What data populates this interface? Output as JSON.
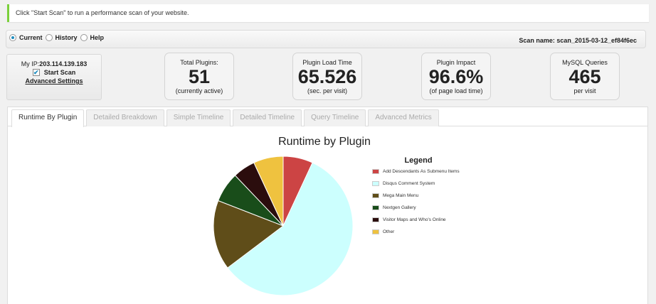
{
  "notice": {
    "text": "Click \"Start Scan\" to run a performance scan of your website."
  },
  "modes": [
    {
      "label": "Current",
      "checked": true
    },
    {
      "label": "History",
      "checked": false
    },
    {
      "label": "Help",
      "checked": false
    }
  ],
  "scan": {
    "name": "Scan name: scan_2015-03-12_ef84f6ec"
  },
  "ipbox": {
    "ip_prefix": "My IP:",
    "ip": "203.114.139.183",
    "start_scan": "Start Scan",
    "start_scan_checked": true,
    "advanced_settings": "Advanced Settings"
  },
  "stats": [
    {
      "label": "Total Plugins:",
      "value": "51",
      "sub": "(currently active)"
    },
    {
      "label": "Plugin Load Time",
      "value": "65.526",
      "sub": "(sec. per visit)"
    },
    {
      "label": "Plugin Impact",
      "value": "96.6%",
      "sub": "(of page load time)"
    },
    {
      "label": "MySQL Queries",
      "value": "465",
      "sub": "per visit"
    }
  ],
  "tabs": [
    {
      "label": "Runtime By Plugin",
      "active": true
    },
    {
      "label": "Detailed Breakdown",
      "active": false
    },
    {
      "label": "Simple Timeline",
      "active": false
    },
    {
      "label": "Detailed Timeline",
      "active": false
    },
    {
      "label": "Query Timeline",
      "active": false
    },
    {
      "label": "Advanced Metrics",
      "active": false
    }
  ],
  "chart_data": {
    "type": "pie",
    "title": "Runtime by Plugin",
    "legend_title": "Legend",
    "legend_position": "right",
    "slices": [
      {
        "label": "Add Descendants As Submenu Items",
        "value": 6.9,
        "color": "#cc4444"
      },
      {
        "label": "Disqus Comment System",
        "value": 57.8,
        "color": "#ccfffe"
      },
      {
        "label": "Mega Main Menu",
        "value": 16.2,
        "color": "#5f4d19"
      },
      {
        "label": "Nextgen Gallery",
        "value": 7.0,
        "color": "#194d1a"
      },
      {
        "label": "Visitor Maps and Who's Online",
        "value": 5.2,
        "color": "#2b0d0d"
      },
      {
        "label": "Other",
        "value": 6.9,
        "color": "#efc23f"
      }
    ]
  }
}
